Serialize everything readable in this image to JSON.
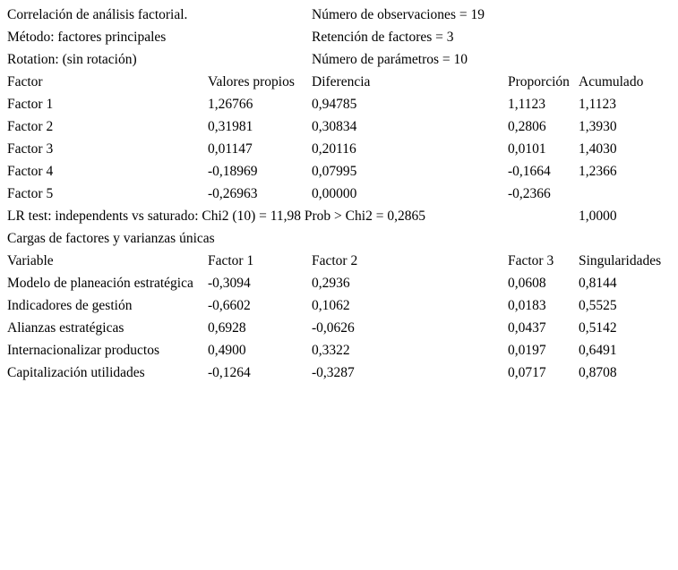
{
  "summary": {
    "lines": [
      {
        "left": "Correlación de análisis factorial.",
        "right": "Número de observaciones = 19"
      },
      {
        "left": "Método: factores principales",
        "right": "Retención de factores = 3"
      },
      {
        "left": "Rotation: (sin rotación)",
        "right": "Número de parámetros = 10"
      }
    ]
  },
  "eigen_table": {
    "columns": [
      "Factor",
      "Valores propios",
      "Diferencia",
      "Proporción",
      "Acumulado"
    ],
    "rows": [
      [
        "Factor 1",
        "1,26766",
        "0,94785",
        "1,1123",
        "1,1123"
      ],
      [
        "Factor 2",
        "0,31981",
        "0,30834",
        "0,2806",
        "1,3930"
      ],
      [
        "Factor 3",
        "0,01147",
        "0,20116",
        "0,0101",
        "1,4030"
      ],
      [
        "Factor 4",
        "-0,18969",
        "0,07995",
        "-0,1664",
        "1,2366"
      ],
      [
        "Factor 5",
        "-0,26963",
        "0,00000",
        "-0,2366",
        ""
      ]
    ]
  },
  "lr_test": {
    "text": "LR test: independents vs saturado: Chi2 (10) = 11,98 Prob > Chi2 = 0,2865",
    "value": "1,0000"
  },
  "loadings_table": {
    "title": "Cargas de factores y varianzas únicas",
    "columns": [
      "Variable",
      "Factor 1",
      "Factor 2",
      "Factor 3",
      "Singularidades"
    ],
    "rows": [
      [
        "Modelo de planeación estratégica",
        "-0,3094",
        "0,2936",
        "0,0608",
        "0,8144"
      ],
      [
        "Indicadores de gestión",
        "-0,6602",
        "0,1062",
        "0,0183",
        "0,5525"
      ],
      [
        "Alianzas estratégicas",
        "0,6928",
        "-0,0626",
        "0,0437",
        "0,5142"
      ],
      [
        "Internacionalizar productos",
        "0,4900",
        "0,3322",
        "0,0197",
        "0,6491"
      ],
      [
        "Capitalización utilidades",
        "-0,1264",
        "-0,3287",
        "0,0717",
        "0,8708"
      ]
    ]
  }
}
